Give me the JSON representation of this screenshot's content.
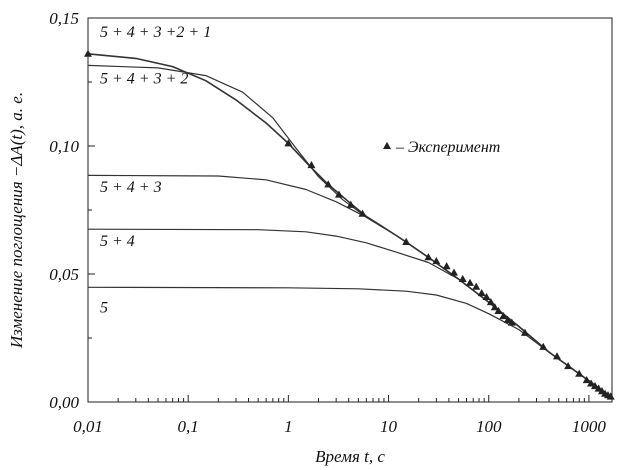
{
  "chart_data": {
    "type": "line",
    "xscale": "log",
    "xlim": [
      0.01,
      1700
    ],
    "ylim": [
      0,
      0.15
    ],
    "xlabel": "Время t, с",
    "ylabel": "Изменение поглощения −ΔA(t), а. е.",
    "x_ticks": [
      {
        "value": 0.01,
        "label": "0,01"
      },
      {
        "value": 0.1,
        "label": "0,1"
      },
      {
        "value": 1,
        "label": "1"
      },
      {
        "value": 10,
        "label": "10"
      },
      {
        "value": 100,
        "label": "100"
      },
      {
        "value": 1000,
        "label": "1000"
      }
    ],
    "y_ticks": [
      {
        "value": 0.0,
        "label": "0,00"
      },
      {
        "value": 0.05,
        "label": "0,05"
      },
      {
        "value": 0.1,
        "label": "0,10"
      },
      {
        "value": 0.15,
        "label": "0,15"
      }
    ],
    "grid": false,
    "legend": {
      "position": "right",
      "marker": "triangle",
      "label": "– Эксперимент"
    },
    "series": [
      {
        "name": "5",
        "label_at": [
          0.01,
          0.035
        ],
        "points": [
          [
            0.01,
            0.0448
          ],
          [
            1,
            0.0446
          ],
          [
            5,
            0.0442
          ],
          [
            15,
            0.0433
          ],
          [
            30,
            0.0418
          ],
          [
            60,
            0.0385
          ],
          [
            100,
            0.0345
          ],
          [
            200,
            0.0283
          ],
          [
            400,
            0.0195
          ],
          [
            800,
            0.011
          ],
          [
            1600,
            0.0025
          ]
        ]
      },
      {
        "name": "5 + 4",
        "label_at": [
          0.01,
          0.061
        ],
        "points": [
          [
            0.01,
            0.0675
          ],
          [
            0.5,
            0.0673
          ],
          [
            1.5,
            0.0665
          ],
          [
            3,
            0.0648
          ],
          [
            6,
            0.0622
          ],
          [
            12,
            0.0585
          ],
          [
            25,
            0.0545
          ],
          [
            50,
            0.048
          ],
          [
            100,
            0.039
          ],
          [
            200,
            0.0295
          ],
          [
            400,
            0.0195
          ],
          [
            800,
            0.011
          ],
          [
            1600,
            0.0025
          ]
        ]
      },
      {
        "name": "5 + 4 + 3",
        "label_at": [
          0.01,
          0.082
        ],
        "points": [
          [
            0.01,
            0.0885
          ],
          [
            0.2,
            0.0883
          ],
          [
            0.6,
            0.0868
          ],
          [
            1.5,
            0.083
          ],
          [
            3,
            0.0782
          ],
          [
            6,
            0.0722
          ],
          [
            12,
            0.065
          ],
          [
            25,
            0.0565
          ],
          [
            50,
            0.048
          ],
          [
            100,
            0.039
          ],
          [
            200,
            0.0295
          ],
          [
            400,
            0.0195
          ],
          [
            800,
            0.011
          ],
          [
            1600,
            0.0025
          ]
        ]
      },
      {
        "name": "5 + 4 + 3 + 2",
        "label_at": [
          0.01,
          0.1245
        ],
        "points": [
          [
            0.01,
            0.1315
          ],
          [
            0.05,
            0.1305
          ],
          [
            0.15,
            0.1275
          ],
          [
            0.35,
            0.121
          ],
          [
            0.7,
            0.111
          ],
          [
            1.2,
            0.099
          ],
          [
            2,
            0.088
          ],
          [
            3.5,
            0.079
          ],
          [
            6,
            0.0722
          ],
          [
            12,
            0.065
          ],
          [
            25,
            0.0565
          ],
          [
            50,
            0.048
          ],
          [
            100,
            0.039
          ],
          [
            200,
            0.0295
          ],
          [
            400,
            0.0195
          ],
          [
            800,
            0.011
          ],
          [
            1600,
            0.0025
          ]
        ]
      },
      {
        "name": "5 + 4 + 3 +2 + 1",
        "label_at": [
          0.01,
          0.1425
        ],
        "points": [
          [
            0.01,
            0.136
          ],
          [
            0.03,
            0.1342
          ],
          [
            0.07,
            0.131
          ],
          [
            0.15,
            0.1255
          ],
          [
            0.3,
            0.118
          ],
          [
            0.6,
            0.109
          ],
          [
            1,
            0.101
          ],
          [
            1.6,
            0.0925
          ],
          [
            2.5,
            0.085
          ],
          [
            4,
            0.0782
          ],
          [
            6,
            0.0725
          ],
          [
            10,
            0.067
          ],
          [
            15,
            0.0625
          ],
          [
            25,
            0.0565
          ],
          [
            50,
            0.048
          ],
          [
            100,
            0.039
          ],
          [
            200,
            0.0295
          ],
          [
            400,
            0.0195
          ],
          [
            800,
            0.011
          ],
          [
            1600,
            0.0025
          ]
        ]
      }
    ],
    "experiment": {
      "name": "Эксперимент",
      "points": [
        [
          0.01,
          0.136
        ],
        [
          1,
          0.101
        ],
        [
          1.7,
          0.0925
        ],
        [
          2.5,
          0.085
        ],
        [
          3.2,
          0.081
        ],
        [
          4.2,
          0.077
        ],
        [
          5.5,
          0.0735
        ],
        [
          15,
          0.0625
        ],
        [
          25,
          0.0565
        ],
        [
          30,
          0.055
        ],
        [
          38,
          0.053
        ],
        [
          45,
          0.0505
        ],
        [
          55,
          0.048
        ],
        [
          65,
          0.0465
        ],
        [
          75,
          0.045
        ],
        [
          85,
          0.0425
        ],
        [
          95,
          0.041
        ],
        [
          105,
          0.039
        ],
        [
          115,
          0.037
        ],
        [
          125,
          0.0355
        ],
        [
          140,
          0.0335
        ],
        [
          155,
          0.032
        ],
        [
          170,
          0.031
        ],
        [
          230,
          0.027
        ],
        [
          350,
          0.0215
        ],
        [
          480,
          0.0178
        ],
        [
          620,
          0.014
        ],
        [
          800,
          0.011
        ],
        [
          950,
          0.0085
        ],
        [
          1050,
          0.0072
        ],
        [
          1150,
          0.0062
        ],
        [
          1250,
          0.0052
        ],
        [
          1350,
          0.0042
        ],
        [
          1450,
          0.0032
        ],
        [
          1550,
          0.0026
        ],
        [
          1650,
          0.0021
        ]
      ]
    }
  }
}
